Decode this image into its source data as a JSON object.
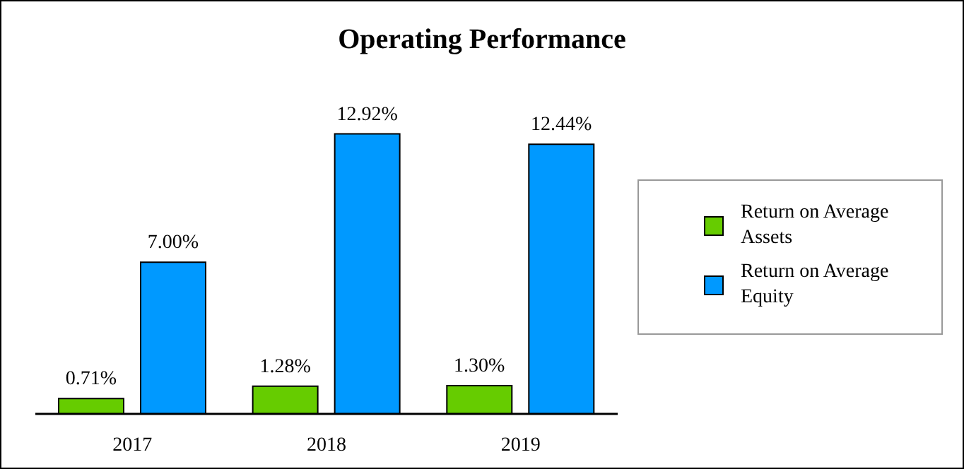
{
  "chart_data": {
    "type": "bar",
    "title": "Operating Performance",
    "categories": [
      "2017",
      "2018",
      "2019"
    ],
    "series": [
      {
        "name": "Return on Average Assets",
        "color": "#66cc00",
        "values": [
          0.71,
          1.28,
          1.3
        ],
        "value_labels": [
          "0.71%",
          "1.28%",
          "1.30%"
        ]
      },
      {
        "name": "Return on Average Equity",
        "color": "#0099ff",
        "values": [
          7.0,
          12.92,
          12.44
        ],
        "value_labels": [
          "7.00%",
          "12.92%",
          "12.44%"
        ]
      }
    ],
    "legend": "right",
    "grid": false
  }
}
